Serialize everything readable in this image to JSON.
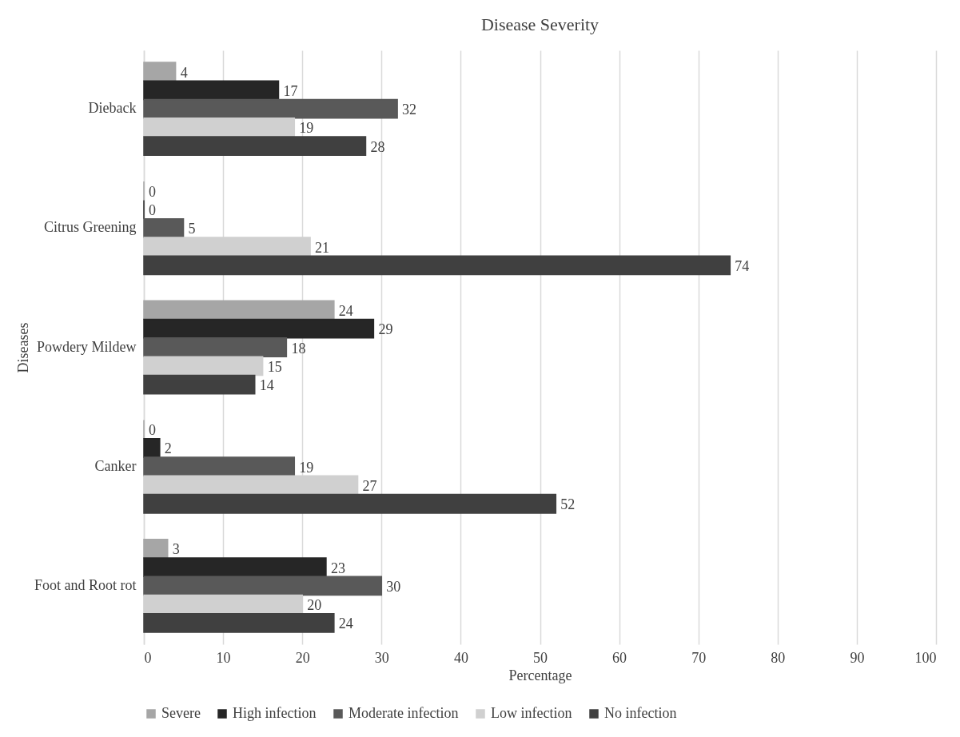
{
  "chart_data": {
    "type": "bar",
    "orientation": "horizontal",
    "title": "Disease Severity",
    "xlabel": "Percentage",
    "ylabel": "Diseases",
    "categories": [
      "Dieback",
      "Citrus Greening",
      "Powdery Mildew",
      "Canker",
      "Foot and Root rot"
    ],
    "series": [
      {
        "name": "Severe",
        "color": "#a6a6a6",
        "values": [
          4,
          0,
          24,
          0,
          3
        ]
      },
      {
        "name": "High infection",
        "color": "#262626",
        "values": [
          17,
          0,
          29,
          2,
          23
        ]
      },
      {
        "name": "Moderate infection",
        "color": "#595959",
        "values": [
          32,
          5,
          18,
          19,
          30
        ]
      },
      {
        "name": "Low infection",
        "color": "#d0d0d0",
        "values": [
          19,
          21,
          15,
          27,
          20
        ]
      },
      {
        "name": "No infection",
        "color": "#404040",
        "values": [
          28,
          74,
          14,
          52,
          24
        ]
      }
    ],
    "xlim": [
      0,
      100
    ],
    "xticks": [
      0,
      10,
      20,
      30,
      40,
      50,
      60,
      70,
      80,
      90,
      100
    ],
    "grid": "x",
    "legend": "bottom",
    "data_labels": true
  }
}
